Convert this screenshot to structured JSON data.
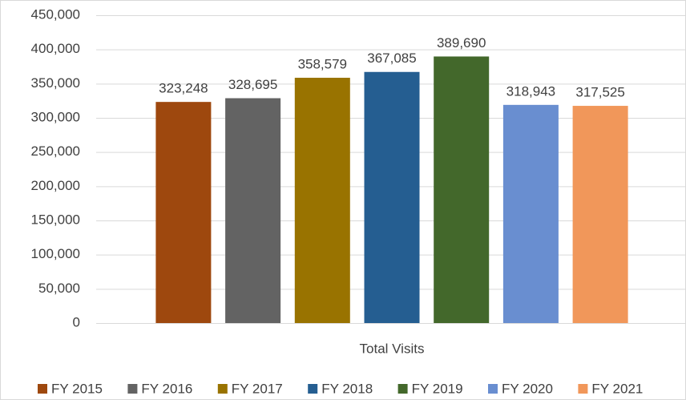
{
  "chart_data": {
    "type": "bar",
    "categories": [
      "Total Visits"
    ],
    "series": [
      {
        "name": "FY 2015",
        "color": "#9e480e",
        "values": [
          323248
        ],
        "value_labels": [
          "323,248"
        ]
      },
      {
        "name": "FY 2016",
        "color": "#636363",
        "values": [
          328695
        ],
        "value_labels": [
          "328,695"
        ]
      },
      {
        "name": "FY 2017",
        "color": "#997300",
        "values": [
          358579
        ],
        "value_labels": [
          "358,579"
        ]
      },
      {
        "name": "FY 2018",
        "color": "#255e91",
        "values": [
          367085
        ],
        "value_labels": [
          "367,085"
        ]
      },
      {
        "name": "FY 2019",
        "color": "#43682b",
        "values": [
          389690
        ],
        "value_labels": [
          "389,690"
        ]
      },
      {
        "name": "FY 2020",
        "color": "#698ed0",
        "values": [
          318943
        ],
        "value_labels": [
          "318,943"
        ]
      },
      {
        "name": "FY 2021",
        "color": "#f1975a",
        "values": [
          317525
        ],
        "value_labels": [
          "317,525"
        ]
      }
    ],
    "ylim": [
      0,
      450000
    ],
    "yticks": [
      0,
      {
        "value": 50000,
        "label": "50,000"
      },
      {
        "value": 100000,
        "label": "100,000"
      },
      {
        "value": 150000,
        "label": "150,000"
      },
      {
        "value": 200000,
        "label": "200,000"
      },
      {
        "value": 250000,
        "label": "250,000"
      },
      {
        "value": 300000,
        "label": "300,000"
      },
      {
        "value": 350000,
        "label": "350,000"
      },
      {
        "value": 400000,
        "label": "400,000"
      },
      {
        "value": 450000,
        "label": "450,000"
      }
    ],
    "grid": true,
    "legend": "bottom"
  }
}
